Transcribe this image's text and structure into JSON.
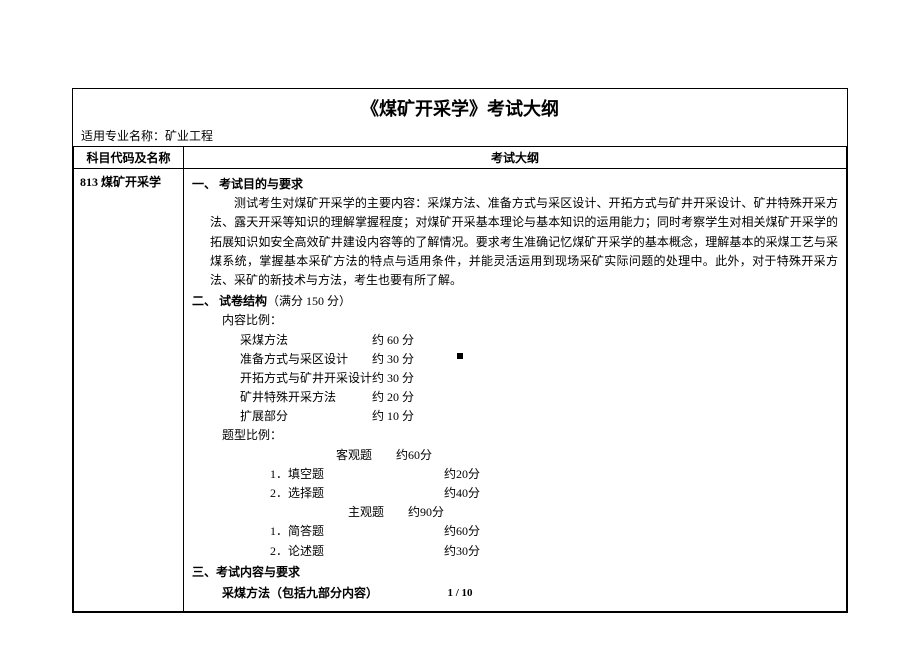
{
  "doc": {
    "title": "《煤矿开采学》考试大纲",
    "subtitle_label": "适用专业名称：",
    "subtitle_value": "矿业工程",
    "header_left": "科目代码及名称",
    "header_right": "考试大纲",
    "course_code": "813 煤矿开采学",
    "sec1_head": "一、 考试目的与要求",
    "sec1_p1": "测试考生对煤矿开采学的主要内容：采煤方法、准备方式与采区设计、开拓方式与矿井开采设计、矿井特殊开采方法、露天开采等知识的理解掌握程度；对煤矿开采基本理论与基本知识的运用能力；同时考察学生对相关煤矿开采学的拓展知识如安全高效矿井建设内容等的了解情况。要求考生准确记忆煤矿开采学的基本概念，理解基本的采煤工艺与采煤系统，掌握基本采矿方法的特点与适用条件，并能灵活运用到现场采矿实际问题的处理中。此外，对于特殊开采方法、采矿的新技术与方法，考生也要有所了解。",
    "sec2_head": "二、 试卷结构",
    "sec2_paren": "（满分 150 分）",
    "content_ratio_label": "内容比例：",
    "rows1": [
      {
        "label": "采煤方法",
        "val": "约 60 分"
      },
      {
        "label": "准备方式与采区设计",
        "val": "约 30 分"
      },
      {
        "label": "开拓方式与矿井开采设计",
        "val": "约 30 分"
      },
      {
        "label": "矿井特殊开采方法",
        "val": "约 20 分"
      },
      {
        "label": "扩展部分",
        "val": "约 10 分"
      }
    ],
    "type_ratio_label": "题型比例：",
    "obj_label": "客观题",
    "obj_val": "约60分",
    "rows2": [
      {
        "label": "1．填空题",
        "val": "约20分"
      },
      {
        "label": "2．选择题",
        "val": "约40分"
      }
    ],
    "subj_label": "主观题",
    "subj_val": "约90分",
    "rows3": [
      {
        "label": "1．简答题",
        "val": "约60分"
      },
      {
        "label": "2．论述题",
        "val": "约30分"
      }
    ],
    "sec3_head": "三、考试内容与要求",
    "sec3_sub": "采煤方法（包括九部分内容）",
    "footer": "1  /  10"
  }
}
